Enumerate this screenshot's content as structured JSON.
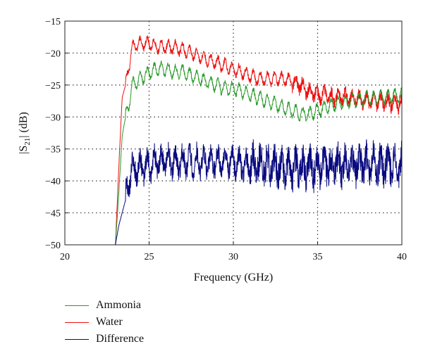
{
  "chart_data": {
    "type": "line",
    "xlabel": "Frequency (GHz)",
    "ylabel_main": "|S",
    "ylabel_sub": "21",
    "ylabel_tail": "| (dB)",
    "xlim": [
      20,
      40
    ],
    "ylim": [
      -50,
      -15
    ],
    "xticks": [
      20,
      25,
      30,
      35,
      40
    ],
    "xtick_labels": [
      "20",
      "25",
      "30",
      "35",
      "40"
    ],
    "yticks": [
      -50,
      -45,
      -40,
      -35,
      -30,
      -25,
      -20,
      -15
    ],
    "ytick_labels": [
      "−50",
      "−45",
      "−40",
      "−35",
      "−30",
      "−25",
      "−20",
      "−15"
    ],
    "grid": true,
    "legend_position": "bottom-left-below",
    "series": [
      {
        "name": "Ammonia",
        "color": "#2a9a2a",
        "x": [
          23.0,
          23.2,
          23.4,
          23.6,
          23.8,
          24.0,
          24.5,
          25.0,
          25.5,
          26.0,
          26.5,
          27.0,
          27.5,
          28.0,
          28.5,
          29.0,
          29.5,
          30.0,
          30.5,
          31.0,
          31.5,
          32.0,
          32.5,
          33.0,
          33.5,
          34.0,
          34.5,
          35.0,
          35.5,
          36.0,
          36.5,
          37.0,
          37.5,
          38.0,
          38.5,
          39.0,
          39.5,
          40.0
        ],
        "y": [
          -50,
          -42,
          -33,
          -30,
          -28,
          -25,
          -24,
          -23,
          -22.5,
          -22.5,
          -23,
          -23,
          -23.5,
          -24,
          -24.5,
          -25,
          -25.5,
          -25.5,
          -26,
          -26.5,
          -27,
          -27.5,
          -28,
          -28.5,
          -29,
          -29.5,
          -29.5,
          -29,
          -28.5,
          -28,
          -27.8,
          -27.5,
          -27.3,
          -27,
          -27,
          -26.8,
          -26.7,
          -26.5
        ]
      },
      {
        "name": "Water",
        "color": "#ee1111",
        "x": [
          23.0,
          23.2,
          23.4,
          23.6,
          23.8,
          24.0,
          24.5,
          25.0,
          25.5,
          26.0,
          26.5,
          27.0,
          27.5,
          28.0,
          28.5,
          29.0,
          29.5,
          30.0,
          30.5,
          31.0,
          31.5,
          32.0,
          32.5,
          33.0,
          33.5,
          34.0,
          34.5,
          35.0,
          35.5,
          36.0,
          36.5,
          37.0,
          37.5,
          38.0,
          38.5,
          39.0,
          39.5,
          40.0
        ],
        "y": [
          -50,
          -38,
          -27,
          -25,
          -22,
          -19,
          -18.5,
          -18.5,
          -19,
          -19,
          -19,
          -19.5,
          -20,
          -20.5,
          -21,
          -21.5,
          -22,
          -22.5,
          -23,
          -23.5,
          -24,
          -24,
          -24,
          -24,
          -24.5,
          -25,
          -26,
          -26.5,
          -26.5,
          -27,
          -27,
          -27,
          -27.2,
          -27.5,
          -27.5,
          -27.7,
          -27.8,
          -28
        ]
      },
      {
        "name": "Difference",
        "color": "#0a0a80",
        "x": [
          23.0,
          23.2,
          23.4,
          23.6,
          23.8,
          24.0,
          24.5,
          25.0,
          25.5,
          26.0,
          26.5,
          27.0,
          27.5,
          28.0,
          28.5,
          29.0,
          29.5,
          30.0,
          30.5,
          31.0,
          31.5,
          32.0,
          32.5,
          33.0,
          33.5,
          34.0,
          34.5,
          35.0,
          35.5,
          36.0,
          36.5,
          37.0,
          37.5,
          38.0,
          38.5,
          39.0,
          39.5,
          40.0
        ],
        "y": [
          -50,
          -47,
          -45,
          -43,
          -40,
          -38,
          -38,
          -37.5,
          -37,
          -37,
          -37,
          -37,
          -37,
          -37,
          -37,
          -37,
          -37,
          -37,
          -37.5,
          -37.5,
          -37.5,
          -37.5,
          -37.5,
          -38,
          -38,
          -38,
          -38,
          -38,
          -37.5,
          -37.5,
          -37.5,
          -37.5,
          -37.5,
          -37.5,
          -37.5,
          -37.5,
          -37.5,
          -37.5
        ]
      }
    ]
  }
}
